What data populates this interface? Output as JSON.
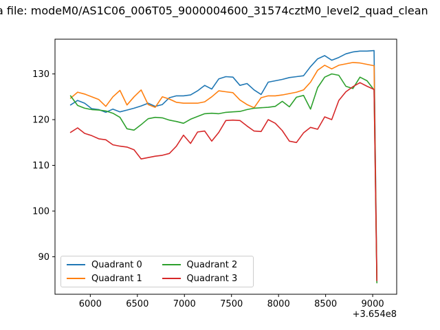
{
  "figure": {
    "background": "#ffffff"
  },
  "chart_data": {
    "type": "line",
    "title": "a file: modeM0/AS1C06_006T05_9000004600_31574cztM0_level2_quad_clean",
    "x_axis": {
      "ticks": [
        6000,
        6500,
        7000,
        7500,
        8000,
        8500,
        9000
      ],
      "offset_label": "+3.654e8",
      "lim": [
        5625,
        9255
      ]
    },
    "y_axis": {
      "ticks": [
        90,
        100,
        110,
        120,
        130
      ],
      "lim": [
        81.8,
        137.6
      ]
    },
    "grid": false,
    "legend": {
      "position": "lower left",
      "columns": 2,
      "labels": [
        "Quadrant 0",
        "Quadrant 1",
        "Quadrant 2",
        "Quadrant 3"
      ]
    },
    "x": [
      5790,
      5865,
      5940,
      6015,
      6090,
      6165,
      6240,
      6315,
      6390,
      6465,
      6540,
      6615,
      6690,
      6765,
      6840,
      6915,
      6990,
      7065,
      7140,
      7215,
      7290,
      7365,
      7440,
      7515,
      7590,
      7665,
      7740,
      7815,
      7890,
      7965,
      8040,
      8115,
      8190,
      8265,
      8340,
      8415,
      8490,
      8565,
      8640,
      8715,
      8790,
      8865,
      8940,
      9015,
      9045
    ],
    "series": [
      {
        "name": "Quadrant 0",
        "color": "#1f77b4",
        "values": [
          123.2,
          124.2,
          123.6,
          122.4,
          122.2,
          121.6,
          122.3,
          121.7,
          122.1,
          122.5,
          123.0,
          123.6,
          122.9,
          123.3,
          124.8,
          125.2,
          125.2,
          125.4,
          126.3,
          127.5,
          126.7,
          128.9,
          129.4,
          129.3,
          127.5,
          127.9,
          126.5,
          125.5,
          128.2,
          128.5,
          128.8,
          129.2,
          129.4,
          129.6,
          131.6,
          133.3,
          134.0,
          133.0,
          133.6,
          134.4,
          134.8,
          135.0,
          135.0,
          135.1,
          84.6
        ]
      },
      {
        "name": "Quadrant 1",
        "color": "#ff7f0e",
        "values": [
          124.7,
          126.0,
          125.6,
          125.0,
          124.4,
          122.9,
          125.0,
          126.4,
          123.2,
          125.0,
          126.5,
          123.3,
          122.7,
          125.0,
          124.5,
          123.8,
          123.6,
          123.6,
          123.6,
          123.9,
          125.0,
          126.3,
          126.1,
          125.9,
          124.3,
          123.3,
          122.6,
          124.8,
          125.2,
          125.2,
          125.4,
          125.7,
          126.0,
          126.5,
          128.2,
          130.8,
          131.9,
          131.1,
          131.9,
          132.2,
          132.5,
          132.4,
          132.1,
          131.8,
          84.7
        ]
      },
      {
        "name": "Quadrant 2",
        "color": "#2ca02c",
        "values": [
          125.2,
          123.1,
          122.5,
          122.2,
          122.1,
          121.9,
          121.4,
          120.5,
          118.0,
          117.7,
          118.9,
          120.2,
          120.5,
          120.4,
          119.9,
          119.6,
          119.2,
          120.1,
          120.7,
          121.3,
          121.4,
          121.3,
          121.6,
          121.7,
          121.8,
          122.2,
          122.5,
          122.6,
          122.7,
          122.9,
          124.0,
          122.8,
          124.9,
          125.3,
          122.3,
          127.0,
          129.3,
          130.0,
          129.7,
          127.3,
          126.8,
          129.3,
          128.5,
          126.5,
          84.3
        ]
      },
      {
        "name": "Quadrant 3",
        "color": "#d62728",
        "values": [
          117.2,
          118.2,
          117.0,
          116.5,
          115.8,
          115.6,
          114.5,
          114.2,
          114.0,
          113.4,
          111.4,
          111.7,
          112.0,
          112.2,
          112.6,
          114.2,
          116.6,
          114.8,
          117.3,
          117.5,
          115.3,
          117.2,
          119.8,
          119.9,
          119.8,
          118.6,
          117.5,
          117.4,
          120.0,
          119.2,
          117.6,
          115.3,
          115.0,
          117.1,
          118.3,
          117.9,
          120.6,
          120.0,
          124.2,
          126.1,
          127.2,
          128.1,
          127.3,
          126.6,
          84.8
        ]
      }
    ]
  }
}
